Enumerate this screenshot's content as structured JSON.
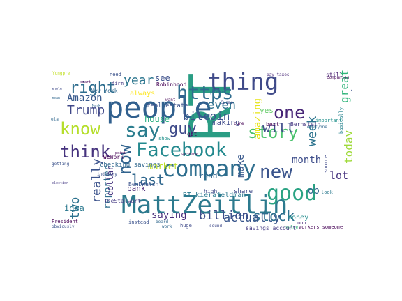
{
  "words": [
    {
      "text": "RT",
      "color": "#2a9d84",
      "rot": -90
    },
    {
      "text": "people",
      "color": "#31608e"
    },
    {
      "text": "MattZeitlin",
      "color": "#2c7a8e"
    },
    {
      "text": "thing",
      "color": "#3f4a89"
    },
    {
      "text": "company",
      "color": "#2e6e8e"
    },
    {
      "text": "Facebook",
      "color": "#23898e"
    },
    {
      "text": "new",
      "color": "#3a548c"
    },
    {
      "text": "now",
      "color": "#31638e"
    },
    {
      "text": "good",
      "color": "#2aa383"
    },
    {
      "text": "one",
      "color": "#482677"
    },
    {
      "text": "say",
      "color": "#2a7d8e"
    },
    {
      "text": "think",
      "color": "#46337e"
    },
    {
      "text": "know",
      "color": "#b5de2b"
    },
    {
      "text": "https",
      "color": "#2f6c8e"
    },
    {
      "text": "right",
      "color": "#2e6d8e"
    },
    {
      "text": "story",
      "color": "#4ac16d"
    },
    {
      "text": "guy",
      "color": "#3e4a89"
    },
    {
      "text": "stock",
      "color": "#2e6e8e"
    },
    {
      "text": "week",
      "color": "#2c738e"
    },
    {
      "text": "even",
      "color": "#2d718e"
    },
    {
      "text": "year",
      "color": "#2b758e"
    },
    {
      "text": "really",
      "color": "#3b528b"
    },
    {
      "text": "great",
      "color": "#31b57b"
    },
    {
      "text": "will",
      "color": "#3e4c8a"
    },
    {
      "text": "make",
      "color": "#38588c"
    },
    {
      "text": "Trump",
      "color": "#3f4788"
    },
    {
      "text": "two",
      "color": "#2c728e"
    },
    {
      "text": "last",
      "color": "#31688e"
    },
    {
      "text": "today",
      "color": "#9fda3a"
    },
    {
      "text": "lot",
      "color": "#46327e"
    },
    {
      "text": "bitcoin",
      "color": "#3a538b"
    },
    {
      "text": "billion",
      "color": "#3d4e8a"
    },
    {
      "text": "actually",
      "color": "#39568c"
    },
    {
      "text": "saying",
      "color": "#472c7a"
    },
    {
      "text": "amazing",
      "color": "#e7e419"
    },
    {
      "text": "month",
      "color": "#3d4d8a"
    },
    {
      "text": "ob",
      "color": "#31688e"
    },
    {
      "text": "Amazon",
      "color": "#37598c"
    },
    {
      "text": "reporter",
      "color": "#2e6f8e"
    },
    {
      "text": "rate",
      "color": "#3b518b"
    },
    {
      "text": "house",
      "color": "#29af7f"
    },
    {
      "text": "market",
      "color": "#bddf26"
    },
    {
      "text": "bank",
      "color": "#482475"
    },
    {
      "text": "making",
      "color": "#3e4989"
    },
    {
      "text": "money",
      "color": "#228c8d"
    },
    {
      "text": "yes",
      "color": "#5ec962"
    },
    {
      "text": "see",
      "color": "#3c4f8a"
    },
    {
      "text": "idea",
      "color": "#2a788e"
    },
    {
      "text": "read",
      "color": "#31688e"
    },
    {
      "text": "always",
      "color": "#fde725"
    },
    {
      "text": "RT kierafeldman",
      "color": "#2a788e"
    },
    {
      "text": "dollar",
      "color": "#46337e"
    },
    {
      "text": "share",
      "color": "#3e4a89"
    },
    {
      "text": "Robinhood",
      "color": "#440154"
    },
    {
      "text": "New York",
      "color": "#31688e"
    },
    {
      "text": "BenDWalsh",
      "color": "#3b528b"
    },
    {
      "text": "TheStalwart",
      "color": "#443a83"
    },
    {
      "text": "Bernstein",
      "color": "#453781"
    },
    {
      "text": "WeWork",
      "color": "#440154"
    },
    {
      "text": "checking savings",
      "color": "#31688e"
    },
    {
      "text": "real estate",
      "color": "#3b528b"
    },
    {
      "text": "companies CEO",
      "color": "#440154"
    },
    {
      "text": "Yongpre",
      "color": "#c2df23"
    },
    {
      "text": "still",
      "color": "#481f70"
    },
    {
      "text": "need",
      "color": "#3b528b"
    },
    {
      "text": "firm",
      "color": "#443983"
    },
    {
      "text": "got",
      "color": "#440154"
    },
    {
      "text": "high",
      "color": "#3e4989"
    },
    {
      "text": "look",
      "color": "#2a788e"
    },
    {
      "text": "source",
      "color": "#3e4989"
    },
    {
      "text": "everyone",
      "color": "#31688e"
    },
    {
      "text": "important",
      "color": "#21918c"
    },
    {
      "text": "industry",
      "color": "#3b528b"
    },
    {
      "text": "President",
      "color": "#440154"
    },
    {
      "text": "getting",
      "color": "#3b528b"
    },
    {
      "text": "non",
      "color": "#482878"
    },
    {
      "text": "value",
      "color": "#35b779"
    },
    {
      "text": "work",
      "color": "#31688e"
    },
    {
      "text": "huge",
      "color": "#3e4989"
    },
    {
      "text": "savings account",
      "color": "#443a83"
    },
    {
      "text": "piece",
      "color": "#31688e"
    },
    {
      "text": "best",
      "color": "#440154"
    },
    {
      "text": "Cuomo",
      "color": "#3e4989"
    },
    {
      "text": "show",
      "color": "#21918c"
    },
    {
      "text": "Softbank",
      "color": "#440154"
    },
    {
      "text": "obviously",
      "color": "#3b528b"
    },
    {
      "text": "basically",
      "color": "#26828e"
    },
    {
      "text": "cure",
      "color": "#440154"
    },
    {
      "text": "pay taxes",
      "color": "#482878"
    },
    {
      "text": "smart",
      "color": "#440154"
    },
    {
      "text": "Mark",
      "color": "#31688e"
    },
    {
      "text": "sound",
      "color": "#3e4989"
    },
    {
      "text": "workers someone",
      "color": "#440154"
    },
    {
      "text": "instead",
      "color": "#3b528b"
    },
    {
      "text": "board",
      "color": "#31688e"
    },
    {
      "text": "want",
      "color": "#440154"
    },
    {
      "text": "whole",
      "color": "#3e4989"
    },
    {
      "text": "mean",
      "color": "#31688e"
    },
    {
      "text": "election",
      "color": "#443983"
    },
    {
      "text": "ela",
      "color": "#31688e"
    },
    {
      "text": "point",
      "color": "#440154"
    }
  ]
}
